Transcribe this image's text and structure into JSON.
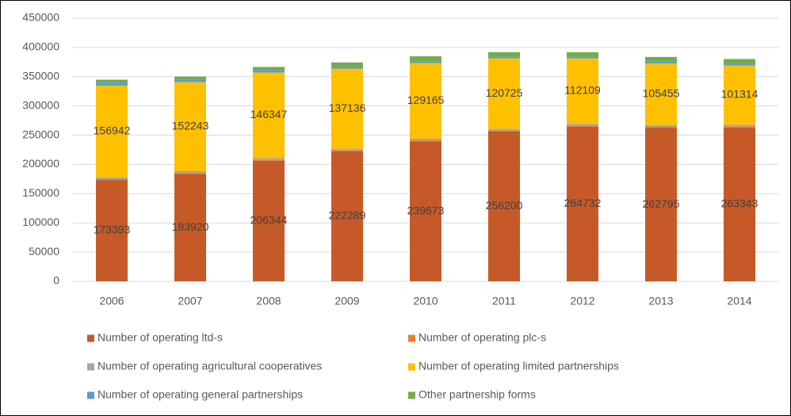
{
  "chart_data": {
    "type": "stacked_bar",
    "categories": [
      "2006",
      "2007",
      "2008",
      "2009",
      "2010",
      "2011",
      "2012",
      "2013",
      "2014"
    ],
    "series": [
      {
        "name": "Number of operating ltd-s",
        "color": "#c55a28",
        "data_labels": true,
        "values": [
          173393,
          183920,
          206344,
          222289,
          239673,
          256200,
          264732,
          262795,
          263343
        ]
      },
      {
        "name": "Number of operating plc-s",
        "color": "#ed7d31",
        "data_labels": false,
        "values": [
          1500,
          1500,
          1500,
          1500,
          1500,
          1500,
          1500,
          1500,
          1500
        ]
      },
      {
        "name": "Number of operating agricultural cooperatives",
        "color": "#a5a5a5",
        "data_labels": false,
        "values": [
          3000,
          3000,
          3000,
          3000,
          3000,
          3000,
          3000,
          3000,
          3000
        ]
      },
      {
        "name": "Number of operating limited partnerships",
        "color": "#ffc000",
        "data_labels": true,
        "values": [
          156942,
          152243,
          146347,
          137136,
          129165,
          120725,
          112109,
          105455,
          101314
        ]
      },
      {
        "name": "Number of operating general partnerships",
        "color": "#5b9bd5",
        "data_labels": false,
        "values": [
          5000,
          4500,
          4500,
          3500,
          3000,
          3000,
          3000,
          3000,
          3000
        ]
      },
      {
        "name": "Other partnership forms",
        "color": "#70ad47",
        "data_labels": false,
        "values": [
          5000,
          5000,
          5000,
          7000,
          8500,
          7500,
          7500,
          8000,
          8000
        ]
      }
    ],
    "ylim": [
      0,
      450000
    ],
    "yticks": [
      0,
      50000,
      100000,
      150000,
      200000,
      250000,
      300000,
      350000,
      400000,
      450000
    ],
    "grid": true,
    "legend": "bottom"
  }
}
